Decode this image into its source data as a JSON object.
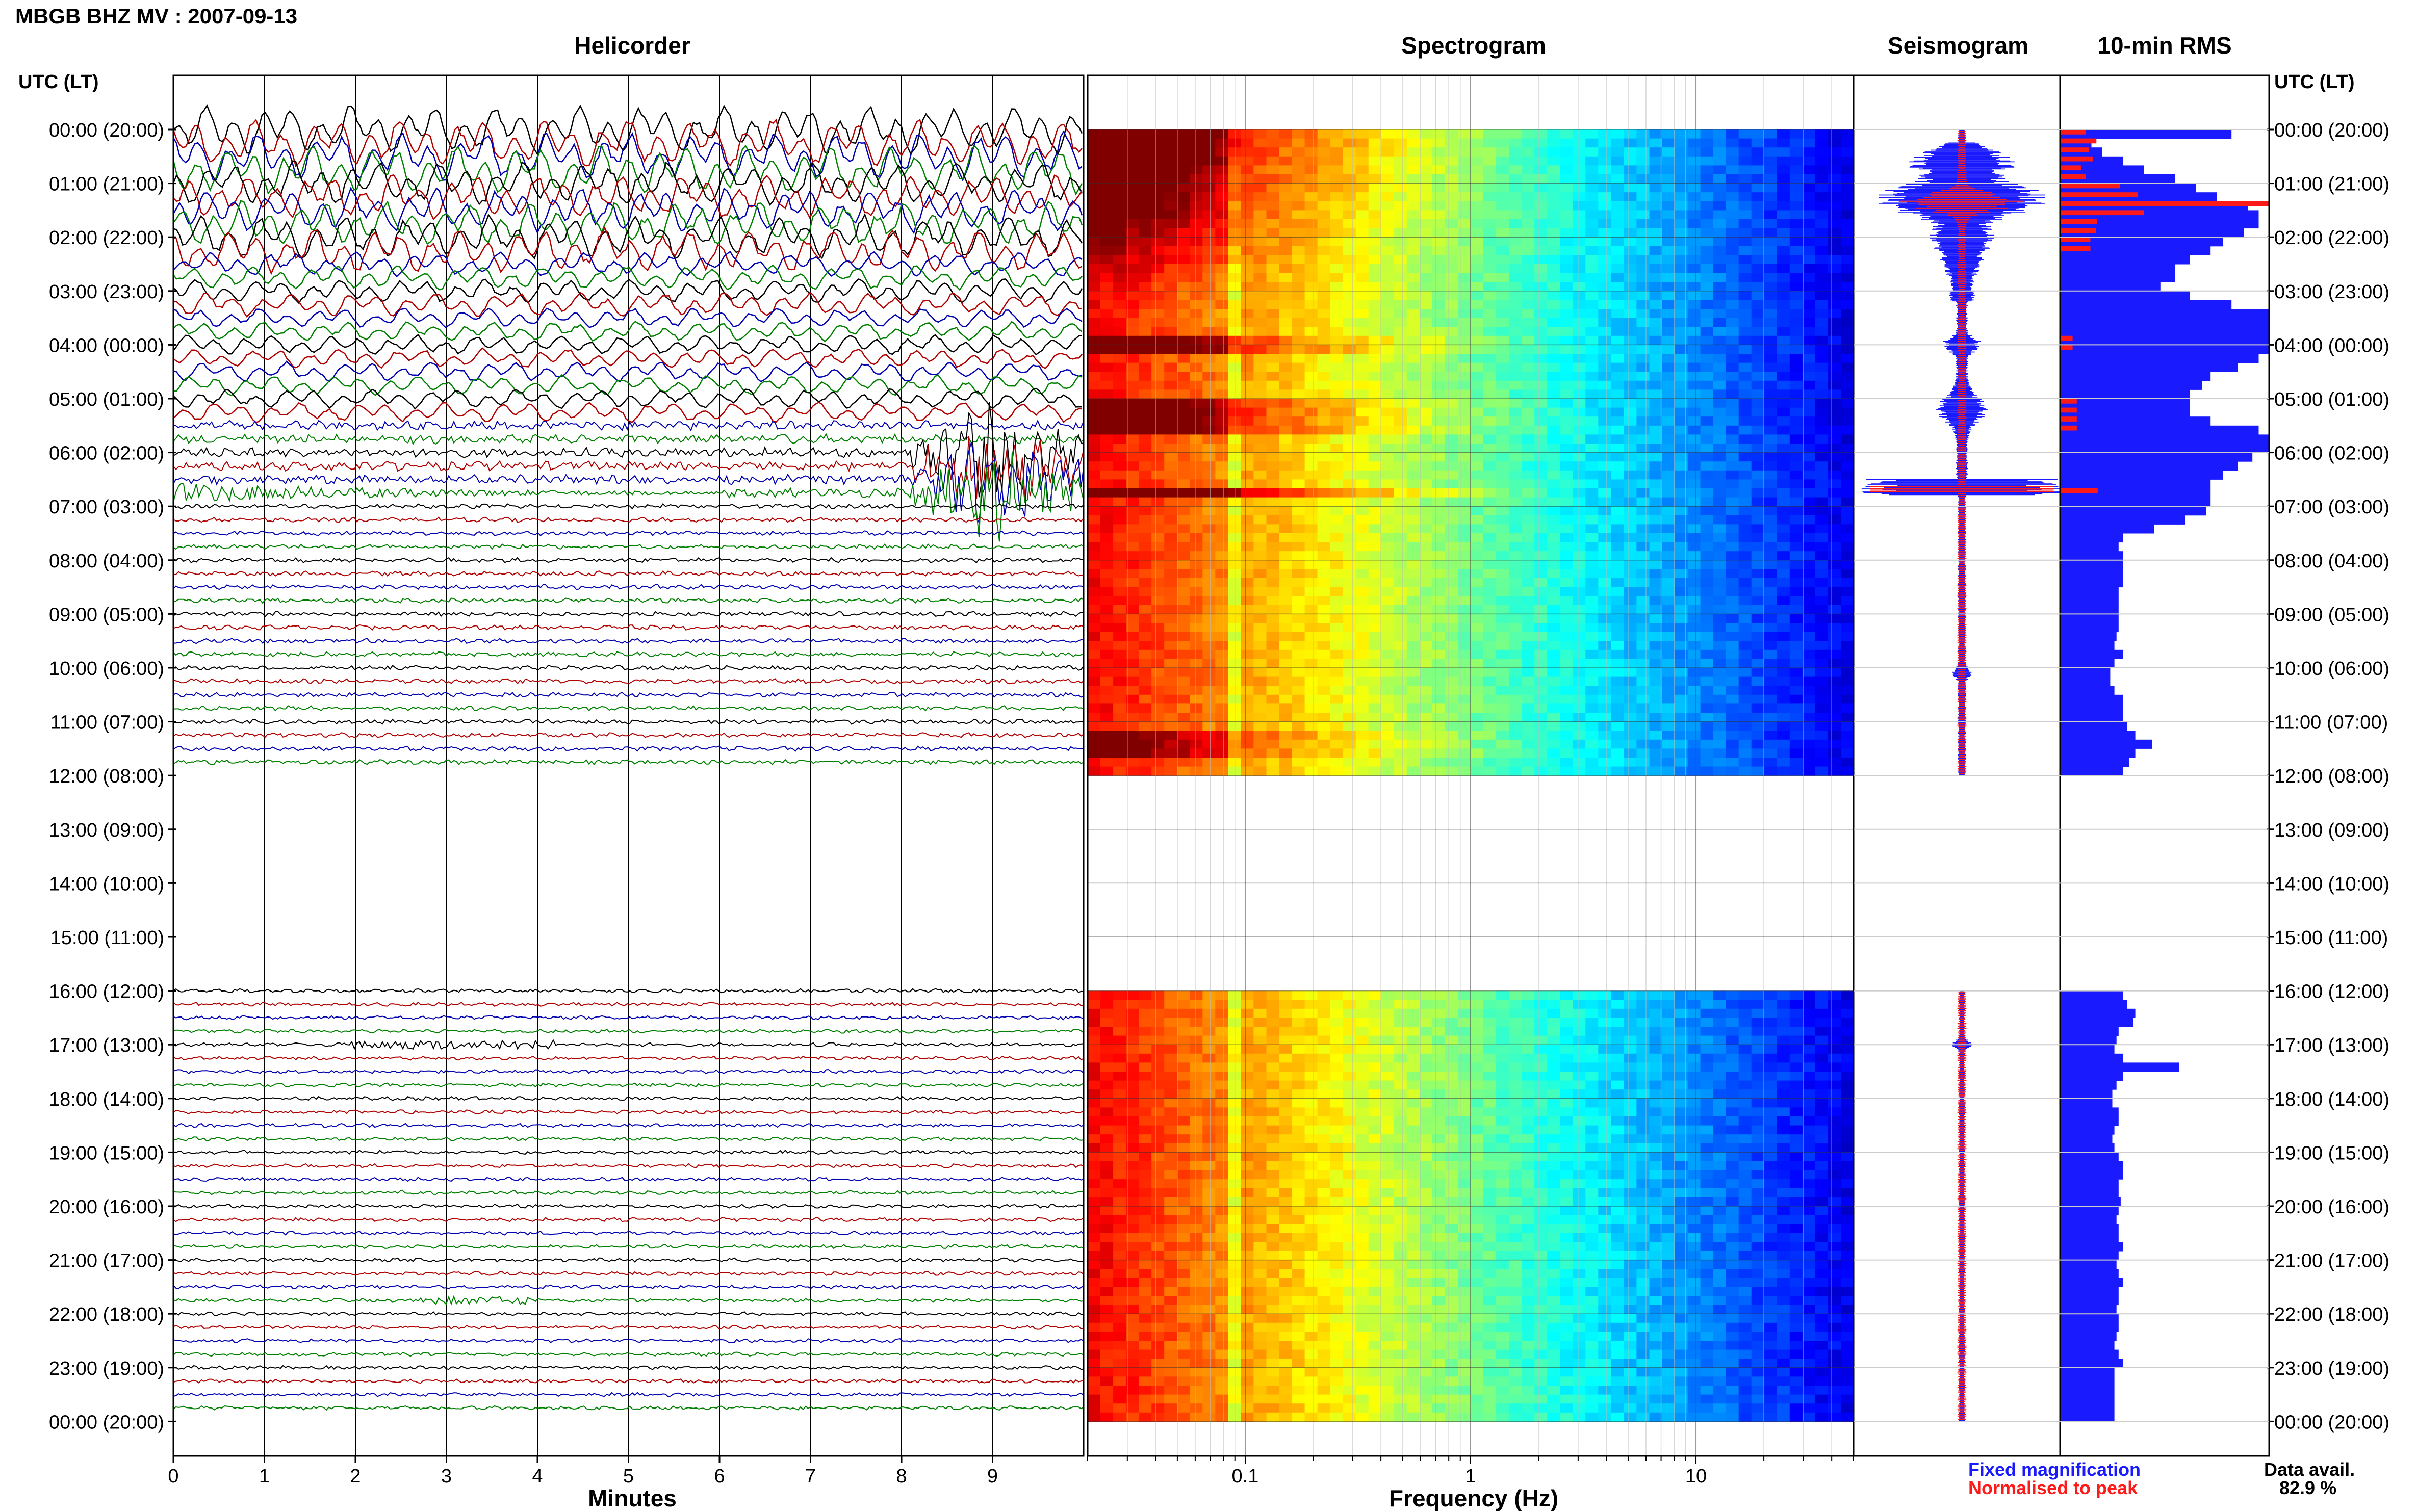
{
  "header": {
    "title": "MBGB BHZ MV : 2007-09-13"
  },
  "panels": {
    "helicorder": "Helicorder",
    "spectrogram": "Spectrogram",
    "seismogram": "Seismogram",
    "rms": "10-min RMS"
  },
  "axes": {
    "time_label_left": "UTC (LT)",
    "time_label_right": "UTC (LT)",
    "helicorder_xlabel": "Minutes",
    "spectrogram_xlabel": "Frequency (Hz)"
  },
  "legend": {
    "fixed": "Fixed magnification",
    "normalised": "Normalised to peak",
    "fixed_color": "#1a1aff",
    "normalised_color": "#ff1a1a"
  },
  "availability": {
    "label": "Data avail.",
    "value": "82.9 %"
  },
  "chart_data": {
    "type": "line",
    "station": "MBGB BHZ MV",
    "date": "2007-09-13",
    "time_ticks": [
      "00:00 (20:00)",
      "01:00 (21:00)",
      "02:00 (22:00)",
      "03:00 (23:00)",
      "04:00 (00:00)",
      "05:00 (01:00)",
      "06:00 (02:00)",
      "07:00 (03:00)",
      "08:00 (04:00)",
      "09:00 (05:00)",
      "10:00 (06:00)",
      "11:00 (07:00)",
      "12:00 (08:00)",
      "13:00 (09:00)",
      "14:00 (10:00)",
      "15:00 (11:00)",
      "16:00 (12:00)",
      "17:00 (13:00)",
      "18:00 (14:00)",
      "19:00 (15:00)",
      "20:00 (16:00)",
      "21:00 (17:00)",
      "22:00 (18:00)",
      "23:00 (19:00)",
      "00:00 (20:00)"
    ],
    "helicorder": {
      "xlabel": "Minutes",
      "xlim": [
        0,
        10
      ],
      "xticks": [
        "0",
        "1",
        "2",
        "3",
        "4",
        "5",
        "6",
        "7",
        "8",
        "9"
      ],
      "trace_colors": [
        "#000000",
        "#b00000",
        "#0000b0",
        "#008000"
      ],
      "data_gaps_hours": [
        [
          12,
          16
        ]
      ]
    },
    "spectrogram": {
      "xlabel": "Frequency (Hz)",
      "xscale": "log",
      "xlim": [
        0.02,
        50
      ],
      "xticks": [
        "0.1",
        "1",
        "10"
      ],
      "data_gaps_hours": [
        [
          12,
          16
        ]
      ]
    },
    "seismogram": {
      "series": [
        {
          "name": "Fixed magnification",
          "color": "#1a1aff"
        },
        {
          "name": "Normalised to peak",
          "color": "#ff1a1a"
        }
      ]
    },
    "rms_10min": {
      "interval_minutes": 10,
      "values": [
        0.82,
        0.15,
        0.2,
        0.3,
        0.4,
        0.55,
        0.65,
        0.75,
        0.9,
        0.95,
        0.95,
        0.88,
        0.78,
        0.72,
        0.62,
        0.55,
        0.55,
        0.48,
        0.62,
        0.82,
        1.0,
        1.0,
        1.0,
        1.0,
        1.0,
        0.95,
        0.85,
        0.72,
        0.68,
        0.62,
        0.62,
        0.62,
        0.72,
        0.95,
        1.0,
        1.0,
        0.92,
        0.85,
        0.78,
        0.72,
        0.72,
        0.72,
        0.7,
        0.6,
        0.45,
        0.3,
        0.28,
        0.3,
        0.3,
        0.3,
        0.3,
        0.28,
        0.28,
        0.28,
        0.28,
        0.28,
        0.27,
        0.26,
        0.3,
        0.26,
        0.24,
        0.24,
        0.26,
        0.3,
        0.3,
        0.3,
        0.32,
        0.36,
        0.44,
        0.36,
        0.33,
        0.3,
        null,
        null,
        null,
        null,
        null,
        null,
        null,
        null,
        null,
        null,
        null,
        null,
        null,
        null,
        null,
        null,
        null,
        null,
        null,
        null,
        null,
        null,
        null,
        null,
        0.3,
        0.32,
        0.36,
        0.35,
        0.28,
        0.27,
        0.26,
        0.3,
        0.57,
        0.3,
        0.27,
        0.25,
        0.25,
        0.28,
        0.28,
        0.26,
        0.25,
        0.26,
        0.28,
        0.3,
        0.3,
        0.28,
        0.28,
        0.29,
        0.28,
        0.27,
        0.28,
        0.28,
        0.3,
        0.28,
        0.27,
        0.28,
        0.3,
        0.28,
        0.28,
        0.27,
        0.28,
        0.28,
        0.27,
        0.26,
        0.28,
        0.3,
        0.26,
        0.26,
        0.26,
        0.26,
        0.26,
        0.26
      ],
      "normalised_peak_rows": [
        [
          6,
          12
        ],
        [
          24,
          30
        ],
        [
          38,
          42
        ],
        [
          40,
          41
        ]
      ]
    }
  }
}
